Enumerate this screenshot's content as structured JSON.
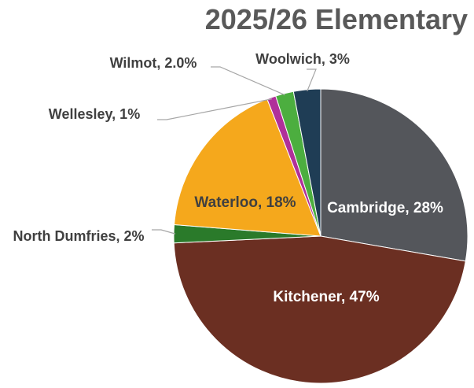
{
  "chart_data": {
    "type": "pie",
    "title": "2025/26 Elementary",
    "categories": [
      "Cambridge",
      "Kitchener",
      "North Dumfries",
      "Waterloo",
      "Wellesley",
      "Wilmot",
      "Woolwich"
    ],
    "values": [
      28,
      47,
      2,
      18,
      1,
      2,
      3
    ],
    "value_labels": [
      "Cambridge, 28%",
      "Kitchener, 47%",
      "North Dumfries, 2%",
      "Waterloo, 18%",
      "Wellesley, 1%",
      "Wilmot, 2.0%",
      "Woolwich, 3%"
    ],
    "colors": [
      "#54565b",
      "#6b2f22",
      "#2a7a2a",
      "#f5a81c",
      "#b0309a",
      "#4cae3f",
      "#1f3d55"
    ]
  }
}
